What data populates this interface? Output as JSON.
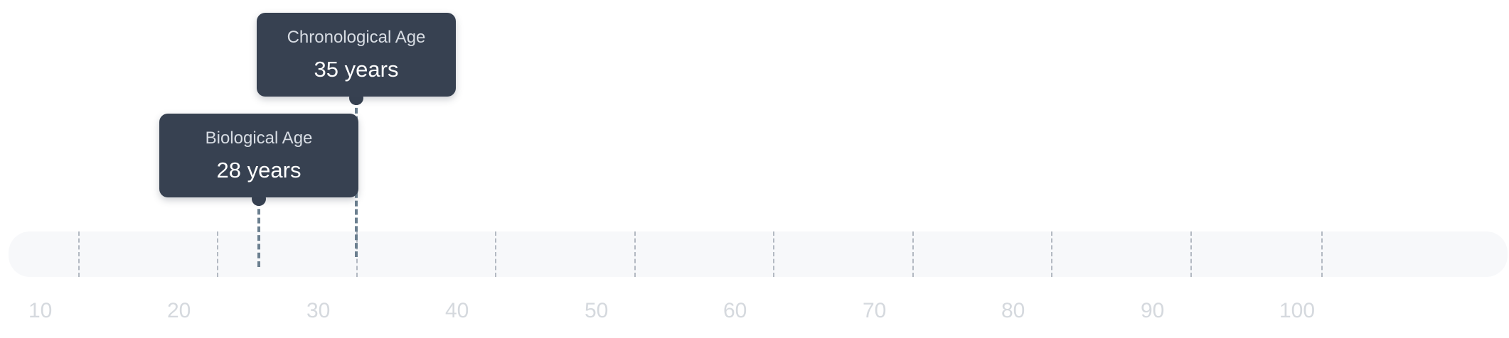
{
  "chart_data": {
    "type": "scatter",
    "title": "",
    "xlabel": "",
    "ylabel": "",
    "x_range": [
      10,
      110
    ],
    "tick_labels": [
      "10",
      "20",
      "30",
      "40",
      "50",
      "60",
      "70",
      "80",
      "90",
      "100"
    ],
    "grid": true,
    "markers": [
      {
        "key": "chronological",
        "label": "Chronological Age",
        "value": 35,
        "value_text": "35 years"
      },
      {
        "key": "biological",
        "label": "Biological Age",
        "value": 28,
        "value_text": "28 years"
      }
    ]
  },
  "colors": {
    "track": "#f7f8fa",
    "gridline": "#b3b9c2",
    "tick_text": "#d5d9de",
    "callout_bg": "#374151",
    "callout_title": "#d7dce3",
    "callout_value": "#ffffff",
    "marker_line": "#6b7f8f"
  }
}
